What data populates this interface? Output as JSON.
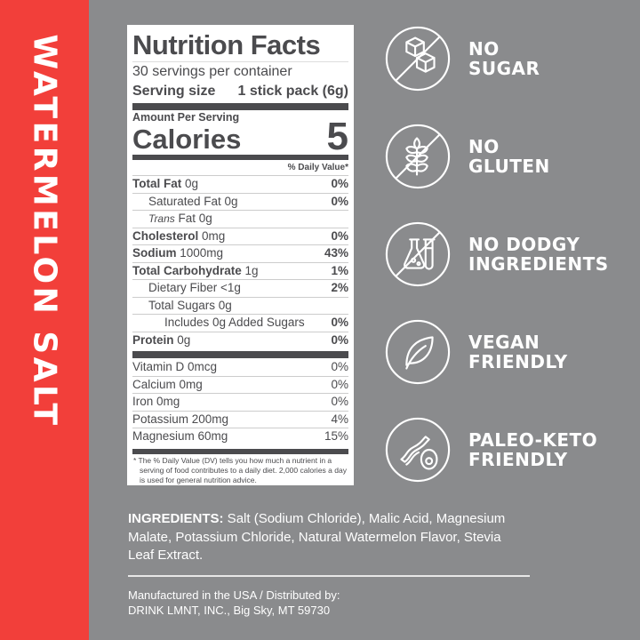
{
  "flavor": "WATERMELON SALT",
  "colors": {
    "accent": "#f23f3a",
    "background": "#8a8b8d",
    "panel_text": "#4b4b4e"
  },
  "nutrition": {
    "title": "Nutrition Facts",
    "servings": "30 servings per container",
    "serving_size_label": "Serving size",
    "serving_size_value": "1 stick pack (6g)",
    "amount_per_serving": "Amount Per Serving",
    "calories_label": "Calories",
    "calories_value": "5",
    "dv_header": "% Daily Value*",
    "rows": [
      {
        "label": "Total Fat",
        "amount": " 0g",
        "dv": "0%"
      },
      {
        "label": "",
        "amount": "Saturated Fat 0g",
        "dv": "0%"
      },
      {
        "label": "Trans",
        "amount": " Fat 0g",
        "dv": ""
      },
      {
        "label": "Cholesterol",
        "amount": " 0mg",
        "dv": "0%"
      },
      {
        "label": "Sodium",
        "amount": " 1000mg",
        "dv": "43%"
      },
      {
        "label": "Total Carbohydrate",
        "amount": " 1g",
        "dv": "1%"
      },
      {
        "label": "",
        "amount": "Dietary Fiber <1g",
        "dv": "2%"
      },
      {
        "label": "",
        "amount": "Total Sugars 0g",
        "dv": ""
      },
      {
        "label": "",
        "amount": "Includes 0g Added Sugars",
        "dv": "0%"
      },
      {
        "label": "Protein",
        "amount": " 0g",
        "dv": "0%"
      }
    ],
    "vitamins": [
      {
        "label": "Vitamin D 0mcg",
        "dv": "0%"
      },
      {
        "label": "Calcium 0mg",
        "dv": "0%"
      },
      {
        "label": "Iron 0mg",
        "dv": "0%"
      },
      {
        "label": "Potassium 200mg",
        "dv": "4%"
      },
      {
        "label": "Magnesium 60mg",
        "dv": "15%"
      }
    ],
    "footnote": "* The % Daily Value (DV) tells you how much a nutrient in a serving of food contributes to a daily diet. 2,000 calories a day is used for general nutrition advice."
  },
  "claims": [
    {
      "icon": "no-sugar-cubes-icon",
      "line1": "NO",
      "line2": "SUGAR"
    },
    {
      "icon": "no-wheat-icon",
      "line1": "NO",
      "line2": "GLUTEN"
    },
    {
      "icon": "no-lab-flask-icon",
      "line1": "NO DODGY",
      "line2": "INGREDIENTS"
    },
    {
      "icon": "leaf-icon",
      "line1": "VEGAN",
      "line2": "FRIENDLY"
    },
    {
      "icon": "bacon-avocado-icon",
      "line1": "PALEO-KETO",
      "line2": "FRIENDLY"
    }
  ],
  "ingredients": {
    "label": "INGREDIENTS:",
    "text": " Salt (Sodium Chloride), Malic Acid, Magnesium Malate, Potassium Chloride, Natural Watermelon Flavor, Stevia Leaf Extract."
  },
  "manufacturer": {
    "line1": "Manufactured in the USA / Distributed by:",
    "line2": "DRINK LMNT, INC., Big Sky, MT 59730"
  }
}
